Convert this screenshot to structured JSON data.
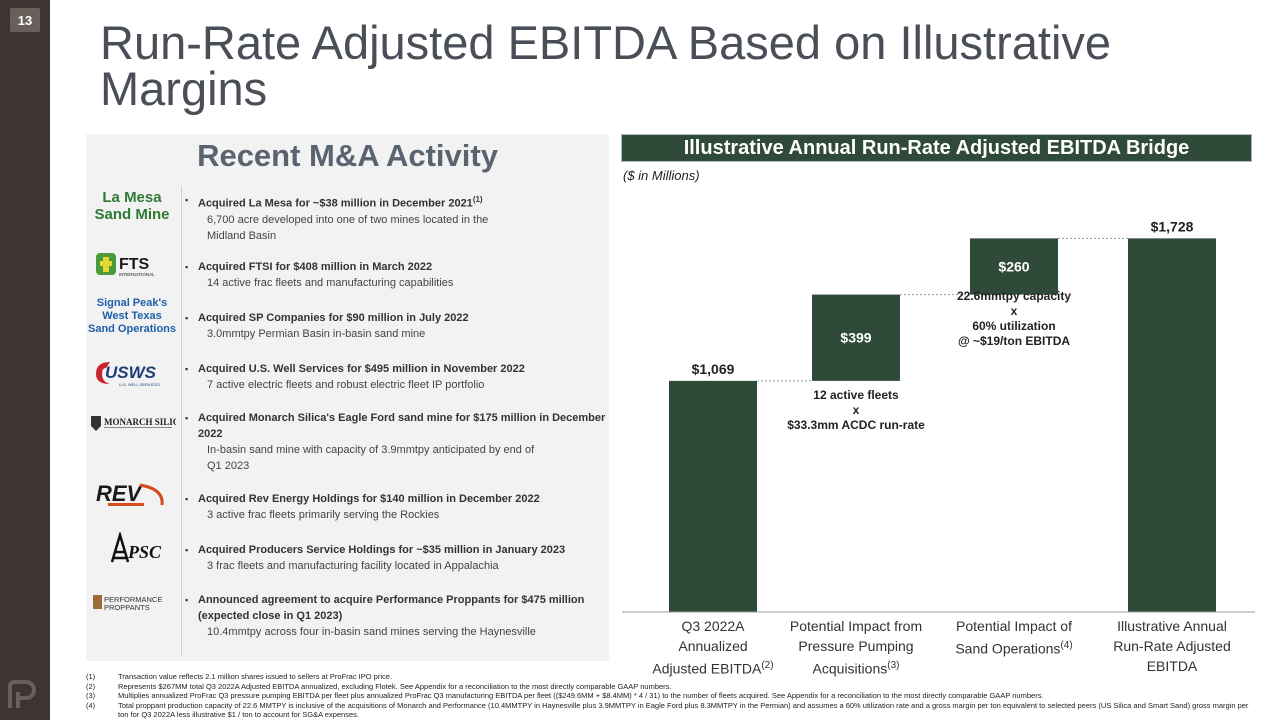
{
  "page_number": "13",
  "title": "Run-Rate Adjusted EBITDA Based on Illustrative Margins",
  "left_panel": {
    "heading": "Recent M&A Activity",
    "logos": {
      "la_mesa": [
        "La Mesa",
        "Sand Mine"
      ],
      "fts": "FTS",
      "fts_sub": "INTERNATIONAL",
      "signal_peak": [
        "Signal Peak's",
        "West Texas",
        "Sand Operations"
      ],
      "usws": "USWS",
      "usws_sub": "U.S. WELL SERVICES",
      "monarch": "MONARCH SILICA",
      "rev": "REV",
      "psc": "PSC",
      "performance": [
        "PERFORMANCE",
        "PROPPANTS"
      ]
    },
    "acquisitions": [
      {
        "headline": "Acquired La Mesa for ~$38 million in December 2021",
        "sup": "(1)",
        "detail": "6,700 acre developed into one of two mines located in the Midland Basin"
      },
      {
        "headline": "Acquired FTSI for $408 million in March 2022",
        "sup": "",
        "detail": "14 active frac fleets and manufacturing capabilities"
      },
      {
        "headline": "Acquired SP Companies for $90 million in July 2022",
        "sup": "",
        "detail": "3.0mmtpy Permian Basin in-basin sand mine"
      },
      {
        "headline": "Acquired U.S. Well Services for $495 million in November 2022",
        "sup": "",
        "detail": "7 active electric fleets and robust electric fleet IP portfolio"
      },
      {
        "headline": "Acquired Monarch Silica's Eagle Ford sand mine for $175 million in December 2022",
        "sup": "",
        "detail": "In-basin sand mine with capacity of 3.9mmtpy anticipated by end of Q1 2023"
      },
      {
        "headline": "Acquired Rev Energy Holdings for $140 million in December 2022",
        "sup": "",
        "detail": "3 active frac fleets primarily serving the Rockies"
      },
      {
        "headline": "Acquired Producers Service Holdings for ~$35 million in January 2023",
        "sup": "",
        "detail": "3 frac fleets and manufacturing facility located in Appalachia"
      },
      {
        "headline": "Announced agreement to acquire Performance Proppants for $475 million (expected close in Q1 2023)",
        "sup": "",
        "detail": "10.4mmtpy across four in-basin sand mines serving the Haynesville"
      }
    ]
  },
  "bridge": {
    "header": "Illustrative Annual Run-Rate Adjusted EBITDA Bridge",
    "units": "($ in Millions)"
  },
  "chart_data": {
    "type": "waterfall",
    "title": "Illustrative Annual Run-Rate Adjusted EBITDA Bridge",
    "units": "($ in Millions)",
    "ylim": [
      0,
      1850
    ],
    "bar_color": "#2f4a39",
    "bars": [
      {
        "label_lines": [
          "Q3 2022A",
          "Annualized",
          "Adjusted EBITDA"
        ],
        "sup": "(2)",
        "base": 0,
        "value": 1069,
        "label": "$1,069",
        "kind": "total"
      },
      {
        "label_lines": [
          "Potential Impact from",
          "Pressure Pumping",
          "Acquisitions"
        ],
        "sup": "(3)",
        "base": 1069,
        "value": 399,
        "label": "$399",
        "kind": "delta"
      },
      {
        "label_lines": [
          "Potential Impact of",
          "Sand Operations"
        ],
        "sup": "(4)",
        "base": 1468,
        "value": 260,
        "label": "$260",
        "kind": "delta"
      },
      {
        "label_lines": [
          "Illustrative Annual",
          "Run-Rate Adjusted",
          "EBITDA"
        ],
        "sup": "",
        "base": 0,
        "value": 1728,
        "label": "$1,728",
        "kind": "total"
      }
    ],
    "annotations": [
      {
        "lines": [
          "12 active fleets",
          "x",
          "$33.3mm ACDC run-rate"
        ]
      },
      {
        "lines": [
          "22.6mmtpy capacity",
          "x",
          "60% utilization",
          "@ ~$19/ton EBITDA"
        ]
      }
    ]
  },
  "footnotes": [
    {
      "num": "(1)",
      "text": "Transaction value reflects 2.1 million shares issued to sellers at ProFrac IPO price."
    },
    {
      "num": "(2)",
      "text": "Represents $267MM total Q3 2022A Adjusted EBITDA annualized, excluding Flotek. See Appendix for a reconciliation to the most directly comparable GAAP numbers."
    },
    {
      "num": "(3)",
      "text": "Multiplies annualized ProFrac Q3 pressure pumping EBITDA per fleet plus annualized ProFrac Q3 manufacturing EBITDA per fleet (($249.6MM + $8.4MM) * 4 / 31) to the number of fleets acquired. See Appendix for a reconciliation to the most directly comparable GAAP numbers."
    },
    {
      "num": "(4)",
      "text": "Total proppant production capacity of 22.6 MMTPY is inclusive of the acquisitions of Monarch and Performance (10.4MMTPY in Haynesville plus 3.9MMTPY in Eagle Ford plus 8.3MMTPY in the Permian) and assumes a 60% utilization rate and a gross margin per ton equivalent to selected peers (US Silica and Smart Sand) gross margin per ton for Q3 2022A less illustrative $1 / ton to account for SG&A expenses."
    }
  ]
}
